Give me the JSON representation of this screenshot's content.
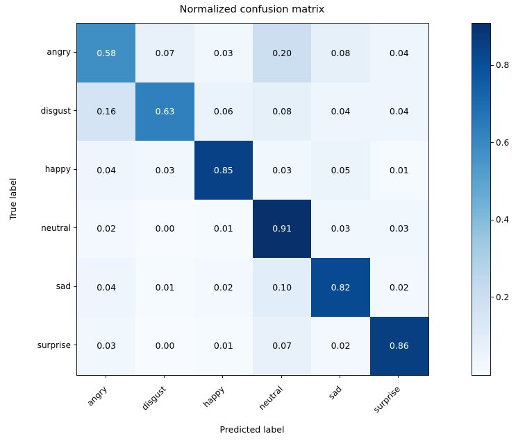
{
  "chart_data": {
    "type": "heatmap",
    "title": "Normalized confusion matrix",
    "xlabel": "Predicted label",
    "ylabel": "True label",
    "categories": [
      "angry",
      "disgust",
      "happy",
      "neutral",
      "sad",
      "surprise"
    ],
    "matrix": [
      [
        0.58,
        0.07,
        0.03,
        0.2,
        0.08,
        0.04
      ],
      [
        0.16,
        0.63,
        0.06,
        0.08,
        0.04,
        0.04
      ],
      [
        0.04,
        0.03,
        0.85,
        0.03,
        0.05,
        0.01
      ],
      [
        0.02,
        0.0,
        0.01,
        0.91,
        0.03,
        0.03
      ],
      [
        0.04,
        0.01,
        0.02,
        0.1,
        0.82,
        0.02
      ],
      [
        0.03,
        0.0,
        0.01,
        0.07,
        0.02,
        0.86
      ]
    ],
    "vmin": 0.0,
    "vmax": 0.91,
    "value_decimals": 2,
    "colormap": "Blues",
    "colorbar_ticks": [
      0.2,
      0.4,
      0.6,
      0.8
    ],
    "colorbar_position": "right",
    "grid": false,
    "colors": {
      "cmap_anchors": [
        "#f7fbff",
        "#deebf7",
        "#c6dbef",
        "#9ecae1",
        "#6baed6",
        "#4292c6",
        "#2171b5",
        "#08519c",
        "#08306b"
      ],
      "cell_text_light": "#ffffff",
      "cell_text_dark": "#000000",
      "frame": "#1a1a1a",
      "background": "#ffffff"
    }
  }
}
